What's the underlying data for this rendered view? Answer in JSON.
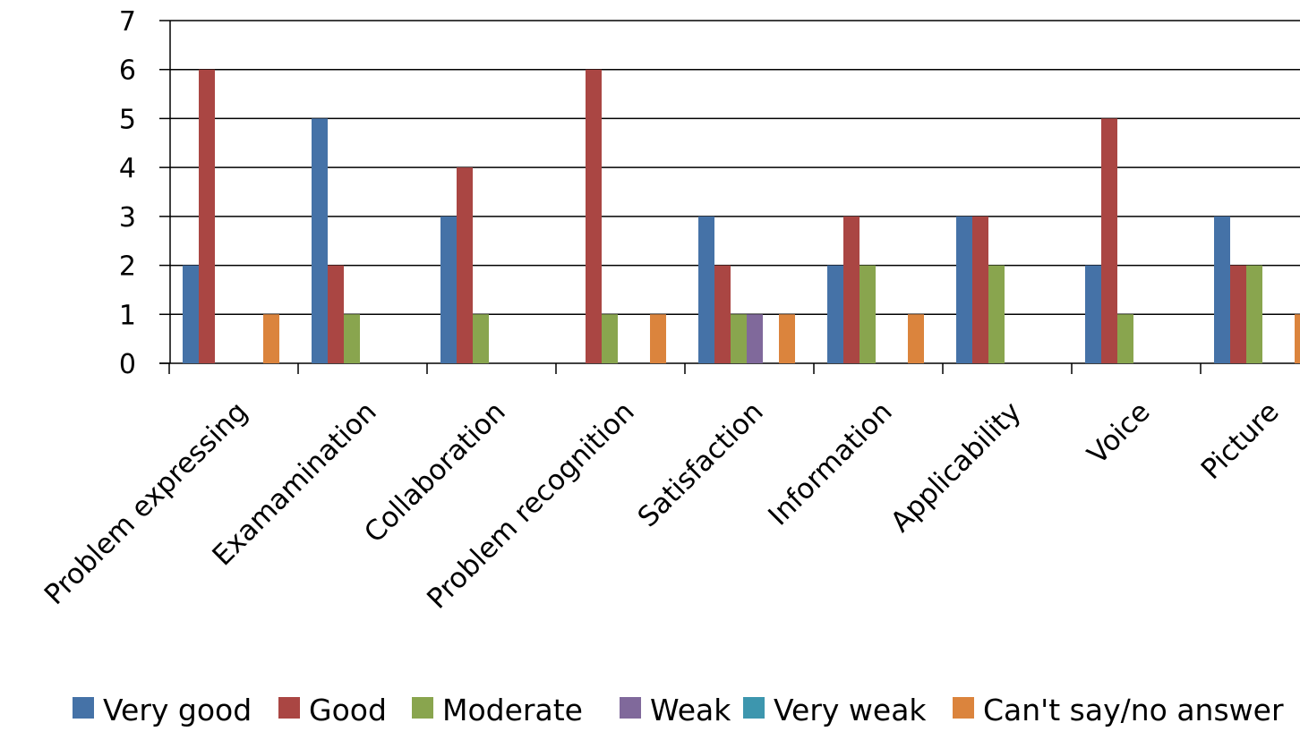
{
  "chart_data": {
    "type": "bar",
    "categories": [
      "Problem expressing",
      "Examamination",
      "Collaboration",
      "Problem recognition",
      "Satisfaction",
      "Information",
      "Applicability",
      "Voice",
      "Picture"
    ],
    "series": [
      {
        "name": "Very good",
        "color": "#4572A7",
        "values": [
          2,
          5,
          3,
          0,
          3,
          2,
          3,
          2,
          3
        ]
      },
      {
        "name": "Good",
        "color": "#AA4643",
        "values": [
          6,
          2,
          4,
          6,
          2,
          3,
          3,
          5,
          2
        ]
      },
      {
        "name": "Moderate",
        "color": "#89A54E",
        "values": [
          0,
          1,
          1,
          1,
          1,
          2,
          2,
          1,
          2
        ]
      },
      {
        "name": "Weak",
        "color": "#80699B",
        "values": [
          0,
          0,
          0,
          0,
          1,
          0,
          0,
          0,
          0
        ]
      },
      {
        "name": "Very weak",
        "color": "#3D96AE",
        "values": [
          0,
          0,
          0,
          0,
          0,
          0,
          0,
          0,
          0
        ]
      },
      {
        "name": "Can't say/no answer",
        "color": "#DB843D",
        "values": [
          1,
          0,
          0,
          1,
          1,
          1,
          0,
          0,
          1
        ]
      }
    ],
    "y_ticks": [
      "0",
      "1",
      "2",
      "3",
      "4",
      "5",
      "6",
      "7"
    ],
    "ylim": [
      0,
      7
    ],
    "grid": true,
    "legend_position": "bottom",
    "title": "",
    "xlabel": "",
    "ylabel": ""
  }
}
